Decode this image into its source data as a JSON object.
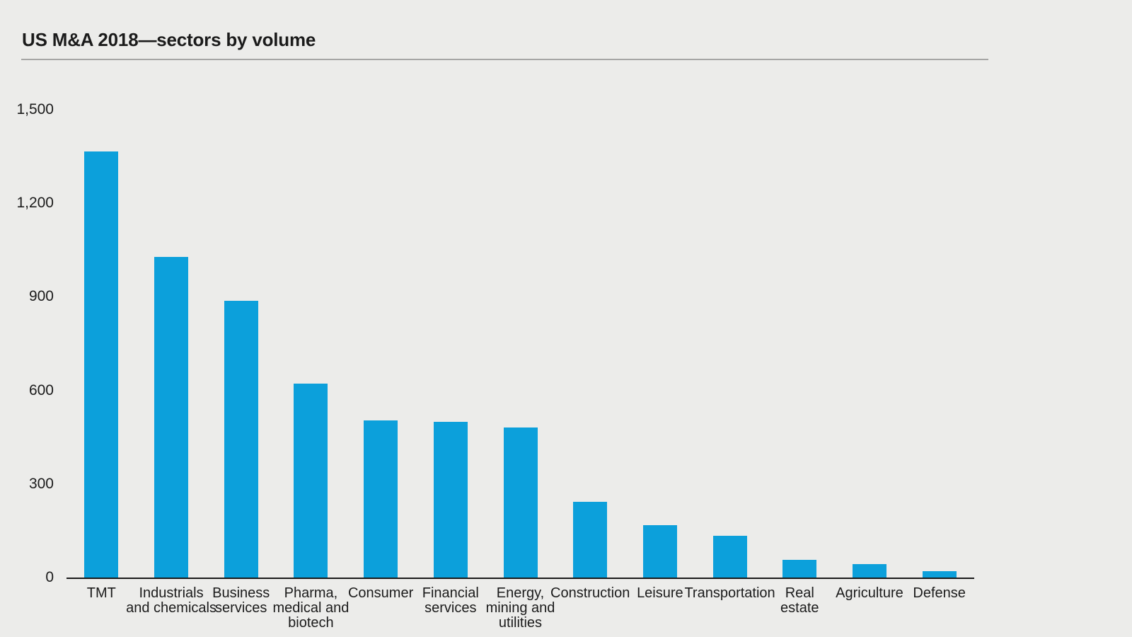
{
  "header": {
    "title": "US M&A 2018—sectors by volume"
  },
  "chart_data": {
    "type": "bar",
    "title": "US M&A 2018—sectors by volume",
    "categories": [
      "TMT",
      "Industrials and chemicals",
      "Business services",
      "Pharma, medical and biotech",
      "Consumer",
      "Financial services",
      "Energy, mining and utilities",
      "Construction",
      "Leisure",
      "Transportation",
      "Real estate",
      "Agriculture",
      "Defense"
    ],
    "category_label_lines": [
      [
        "TMT"
      ],
      [
        "Industrials",
        "and chemicals"
      ],
      [
        "Business",
        "services"
      ],
      [
        "Pharma,",
        "medical and",
        "biotech"
      ],
      [
        "Consumer"
      ],
      [
        "Financial",
        "services"
      ],
      [
        "Energy,",
        "mining and",
        "utilities"
      ],
      [
        "Construction"
      ],
      [
        "Leisure"
      ],
      [
        "Transportation"
      ],
      [
        "Real",
        "estate"
      ],
      [
        "Agriculture"
      ],
      [
        "Defense"
      ]
    ],
    "values": [
      1367,
      1028,
      887,
      621,
      504,
      499,
      480,
      243,
      169,
      135,
      56,
      44,
      20
    ],
    "xlabel": "",
    "ylabel": "",
    "ylim": [
      0,
      1500
    ],
    "ytick_values": [
      0,
      300,
      600,
      900,
      1200,
      1500
    ],
    "ytick_labels": [
      "0",
      "300",
      "600",
      "900",
      "1,200",
      "1,500"
    ],
    "grid": false,
    "legend": false,
    "bar_color": "#0CA0DB",
    "axis_color": "#1A1A1A",
    "background_color": "#ECECEA",
    "text_color": "#1B1B1B"
  }
}
